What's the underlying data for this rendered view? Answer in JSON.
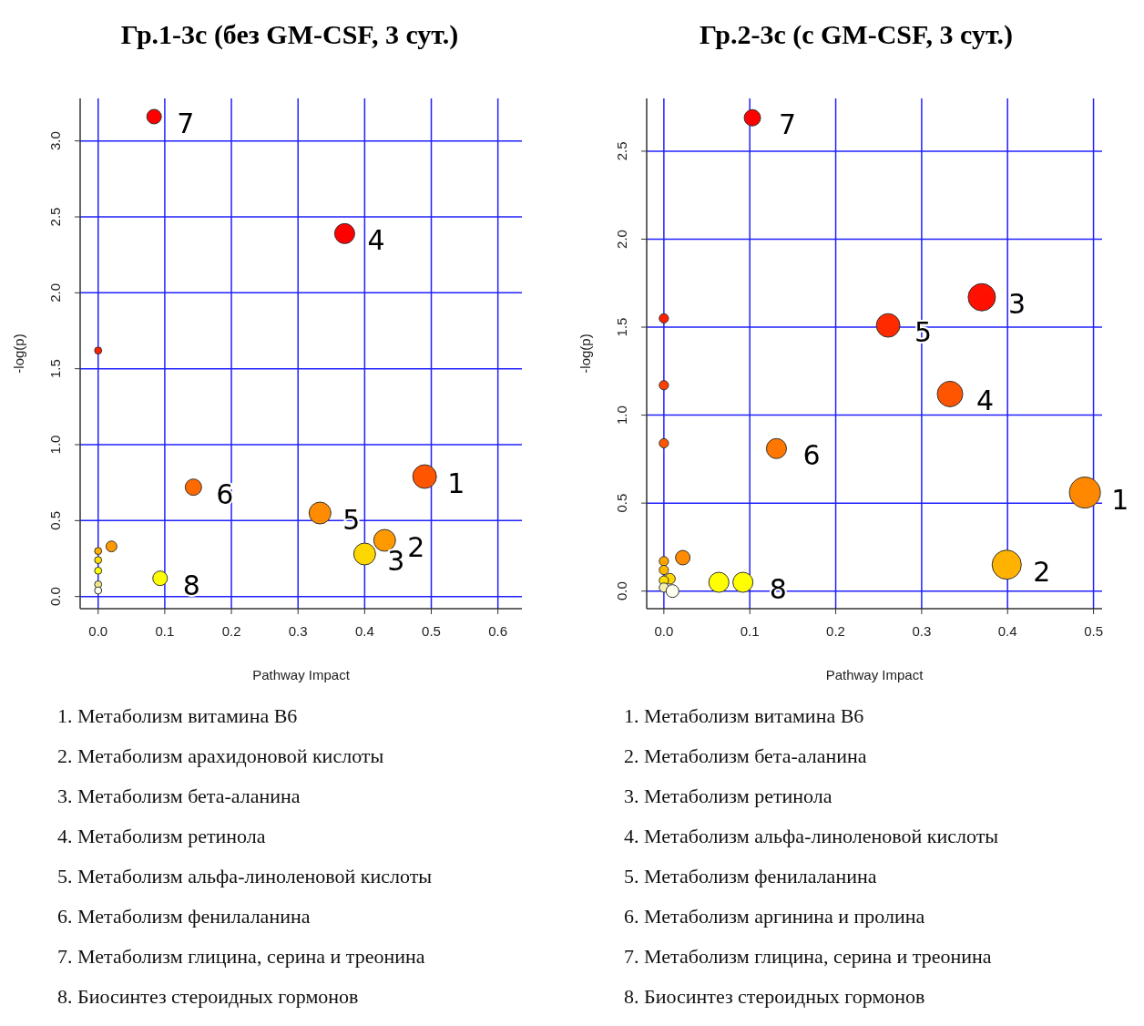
{
  "chart_data": [
    {
      "type": "bubble",
      "title": "Гр.1-3с (без GM-CSF, 3 сут.)",
      "xlabel": "Pathway Impact",
      "ylabel": "-log(p)",
      "xlim": [
        -0.027,
        0.636
      ],
      "ylim": [
        -0.08,
        3.28
      ],
      "xticks": [
        {
          "value": 0,
          "label": "0.0"
        },
        0.1,
        0.2,
        0.3,
        0.4,
        0.5,
        0.6
      ],
      "yticks": [
        {
          "value": 0,
          "label": "0.0"
        },
        0.5,
        {
          "value": 1,
          "label": "1.0"
        },
        1.5,
        {
          "value": 2,
          "label": "2.0"
        },
        2.5,
        {
          "value": 3,
          "label": "3.0"
        }
      ],
      "grid": true,
      "x": [
        0.084,
        0.37,
        0,
        0.49,
        0.143,
        0.333,
        0.43,
        0.4,
        0.093,
        0.02,
        0,
        0,
        0,
        0,
        0
      ],
      "values": [
        3.16,
        2.39,
        1.62,
        0.79,
        0.72,
        0.55,
        0.37,
        0.28,
        0.12,
        0.33,
        0.3,
        0.24,
        0.17,
        0.08,
        0.04
      ],
      "sizes": [
        0.38,
        0.72,
        0.09,
        1,
        0.48,
        0.85,
        0.85,
        0.85,
        0.38,
        0.21,
        0.09,
        0.09,
        0.09,
        0.09,
        0.09
      ],
      "colors": [
        "#ff0000",
        "#ff0000",
        "#ff2000",
        "#ff5500",
        "#ff6a00",
        "#ff8c00",
        "#ff9900",
        "#ffd700",
        "#ffff00",
        "#ff9900",
        "#ffb000",
        "#ffe000",
        "#ffff00",
        "#f0e68c",
        "#fffff0"
      ],
      "annotations": [
        {
          "text": "7",
          "x": 0.084,
          "y": 3.16
        },
        {
          "text": "4",
          "x": 0.37,
          "y": 2.39
        },
        {
          "text": "1",
          "x": 0.49,
          "y": 0.79
        },
        {
          "text": "6",
          "x": 0.143,
          "y": 0.72
        },
        {
          "text": "5",
          "x": 0.333,
          "y": 0.55
        },
        {
          "text": "2",
          "x": 0.43,
          "y": 0.37
        },
        {
          "text": "3",
          "x": 0.4,
          "y": 0.28
        },
        {
          "text": "8",
          "x": 0.093,
          "y": 0.12
        },
        "1. Метаболизм витамина B6",
        "2. Метаболизм арахидоновой кислоты",
        "3. Метаболизм бета-аланина",
        "4. Метаболизм ретинола",
        "5. Метаболизм альфа-линоленовой кислоты",
        "6. Метаболизм фенилаланина",
        "7. Метаболизм глицина, серина и треонина",
        "8. Биосинтез стероидных гормонов"
      ]
    },
    {
      "type": "bubble",
      "title": "Гр.2-3с (с GM-CSF, 3 сут.)",
      "xlabel": "Pathway Impact",
      "ylabel": "-log(p)",
      "xlim": [
        -0.02,
        0.51
      ],
      "ylim": [
        -0.1,
        2.8
      ],
      "xticks": [
        {
          "value": 0,
          "label": "0.0"
        },
        0.1,
        0.2,
        0.3,
        0.4,
        0.5
      ],
      "yticks": [
        {
          "value": 0,
          "label": "0.0"
        },
        0.5,
        {
          "value": 1,
          "label": "1.0"
        },
        1.5,
        {
          "value": 2,
          "label": "2.0"
        },
        2.5
      ],
      "grid": true,
      "x": [
        0.103,
        0.37,
        0.261,
        0.333,
        0.131,
        0.49,
        0.399,
        0.092,
        0.064,
        0,
        0,
        0,
        0.022,
        0,
        0,
        0.007,
        0,
        0,
        0.01
      ],
      "values": [
        2.69,
        1.67,
        1.51,
        1.12,
        0.81,
        0.56,
        0.15,
        0.05,
        0.05,
        1.55,
        1.17,
        0.84,
        0.19,
        0.17,
        0.12,
        0.07,
        0.06,
        0.02,
        0
      ],
      "sizes": [
        0.28,
        0.78,
        0.58,
        0.68,
        0.42,
        1,
        0.89,
        0.42,
        0.42,
        0.09,
        0.09,
        0.09,
        0.22,
        0.09,
        0.09,
        0.12,
        0.09,
        0.09,
        0.17
      ],
      "colors": [
        "#ff0000",
        "#ff1000",
        "#ff2a00",
        "#ff5500",
        "#ff7700",
        "#ff8800",
        "#ffb300",
        "#ffff00",
        "#ffff00",
        "#ff2000",
        "#ff4000",
        "#ff5500",
        "#ff8c00",
        "#ffa500",
        "#ffb800",
        "#ffd700",
        "#ffe000",
        "#f5f0b0",
        "#fffff0"
      ],
      "annotations": [
        {
          "text": "7",
          "x": 0.103,
          "y": 2.69
        },
        {
          "text": "3",
          "x": 0.37,
          "y": 1.67
        },
        {
          "text": "5",
          "x": 0.261,
          "y": 1.51
        },
        {
          "text": "4",
          "x": 0.333,
          "y": 1.12
        },
        {
          "text": "6",
          "x": 0.131,
          "y": 0.81
        },
        {
          "text": "1",
          "x": 0.49,
          "y": 0.56
        },
        {
          "text": "2",
          "x": 0.399,
          "y": 0.15
        },
        {
          "text": "8",
          "x": 0.092,
          "y": 0.05
        },
        "1. Метаболизм витамина B6",
        "2. Метаболизм бета-аланина",
        "3. Метаболизм ретинола",
        "4. Метаболизм альфа-линоленовой кислоты",
        "5. Метаболизм фенилаланина",
        "6. Метаболизм аргинина и пролина",
        "7. Метаболизм глицина, серина и треонина",
        "8. Биосинтез стероидных гормонов"
      ]
    }
  ]
}
